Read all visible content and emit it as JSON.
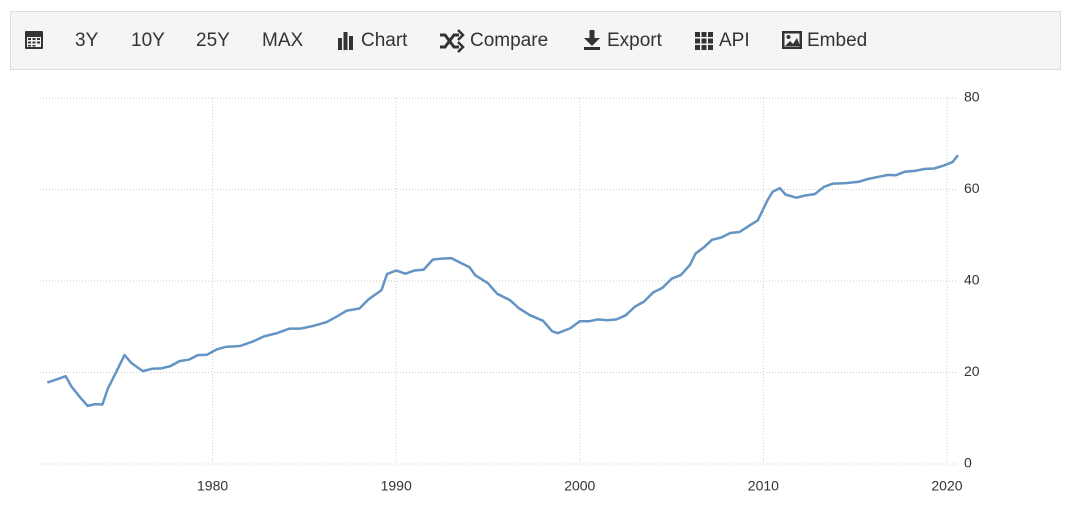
{
  "toolbar": [
    "3Y",
    "10Y",
    "25Y",
    "MAX",
    "Chart",
    "Compare",
    "Export",
    "API",
    "Embed"
  ],
  "chart_data": {
    "type": "line",
    "x": [
      1971.0,
      1971.5,
      1972.0,
      1972.3,
      1972.8,
      1973.2,
      1973.6,
      1974.0,
      1974.3,
      1974.8,
      1975.2,
      1975.6,
      1976.2,
      1976.7,
      1977.2,
      1977.7,
      1978.2,
      1978.7,
      1979.2,
      1979.7,
      1980.2,
      1980.7,
      1981.5,
      1982.2,
      1982.8,
      1983.5,
      1984.2,
      1984.8,
      1985.5,
      1986.2,
      1986.8,
      1987.3,
      1988.0,
      1988.5,
      1989.2,
      1989.5,
      1990.0,
      1990.5,
      1991.0,
      1991.5,
      1992.0,
      1992.5,
      1993.0,
      1993.5,
      1994.0,
      1994.3,
      1995.0,
      1995.5,
      1996.2,
      1996.7,
      1997.3,
      1998.0,
      1998.5,
      1998.8,
      1999.5,
      2000.0,
      2000.5,
      2001.0,
      2001.5,
      2002.0,
      2002.5,
      2003.0,
      2003.5,
      2004.0,
      2004.5,
      2005.0,
      2005.5,
      2006.0,
      2006.3,
      2006.8,
      2007.2,
      2007.7,
      2008.2,
      2008.7,
      2009.2,
      2009.7,
      2010.2,
      2010.5,
      2010.9,
      2011.2,
      2011.8,
      2012.3,
      2012.8,
      2013.3,
      2013.8,
      2014.5,
      2015.2,
      2015.7,
      2016.3,
      2016.8,
      2017.2,
      2017.7,
      2018.3,
      2018.8,
      2019.3,
      2019.8,
      2020.3,
      2020.6
    ],
    "series": [
      {
        "color": "#6394c3",
        "values": [
          17.8,
          18.5,
          19.2,
          17,
          14.5,
          12.7,
          13.1,
          13.0,
          16.5,
          20.5,
          23.8,
          22,
          20.3,
          20.8,
          20.9,
          21.4,
          22.5,
          22.8,
          23.8,
          23.9,
          25,
          25.6,
          25.8,
          26.8,
          27.9,
          28.6,
          29.6,
          29.6,
          30.2,
          31,
          32.3,
          33.5,
          34,
          36,
          38,
          41.5,
          42.3,
          41.6,
          42.3,
          42.5,
          44.7,
          44.9,
          45,
          44,
          43,
          41.3,
          39.5,
          37.2,
          35.8,
          34,
          32.5,
          31.3,
          29,
          28.6,
          29.7,
          31.2,
          31.2,
          31.6,
          31.4,
          31.6,
          32.5,
          34.4,
          35.5,
          37.5,
          38.5,
          40.5,
          41.3,
          43.5,
          46,
          47.5,
          49,
          49.5,
          50.5,
          50.7,
          52,
          53.3,
          57.5,
          59.5,
          60.3,
          58.9,
          58.2,
          58.7,
          59,
          60.6,
          61.3,
          61.4,
          61.7,
          62.3,
          62.8,
          63.2,
          63.1,
          63.9,
          64.1,
          64.5,
          64.6,
          65.2,
          66,
          67.5
        ]
      }
    ],
    "xlim": [
      1970.6,
      2020.6
    ],
    "xticks": [
      1980,
      1990,
      2000,
      2010,
      2020
    ],
    "ylim": [
      0,
      80
    ],
    "yticks": [
      0,
      20,
      40,
      60,
      80
    ],
    "grid": true
  }
}
